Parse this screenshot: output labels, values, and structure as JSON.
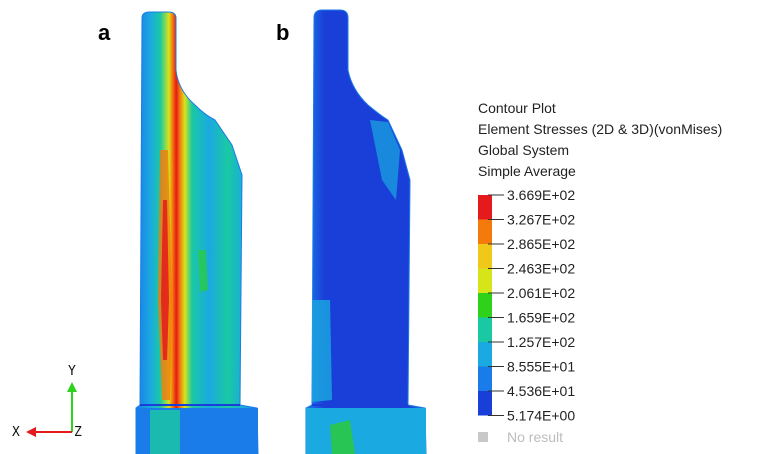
{
  "panels": [
    {
      "label": "a"
    },
    {
      "label": "b"
    }
  ],
  "legend": {
    "header": [
      "Contour Plot",
      "Element Stresses (2D & 3D)(vonMises)",
      "Global System",
      "Simple Average"
    ],
    "ticks": [
      "3.669E+02",
      "3.267E+02",
      "2.865E+02",
      "2.463E+02",
      "2.061E+02",
      "1.659E+02",
      "1.257E+02",
      "8.555E+01",
      "4.536E+01",
      "5.174E+00"
    ],
    "bands": [
      "#e41a1c",
      "#f47a0c",
      "#f0c81a",
      "#d6e41a",
      "#2fd21a",
      "#1ac9a3",
      "#1aa9e0",
      "#1a7ce8",
      "#1a3fd8"
    ],
    "no_result": "No result",
    "no_result_color": "#c8c8c8"
  },
  "axes": {
    "x": "X",
    "y": "Y",
    "z": "Z"
  },
  "colors": {
    "deep_blue": "#1a3fd8",
    "mid_blue": "#1a7ce8",
    "light_blue": "#1aa9e0",
    "cyan": "#1ac9a3",
    "green": "#2fd21a",
    "yellow": "#d6e41a",
    "orange": "#f47a0c",
    "red": "#e41a1c"
  }
}
